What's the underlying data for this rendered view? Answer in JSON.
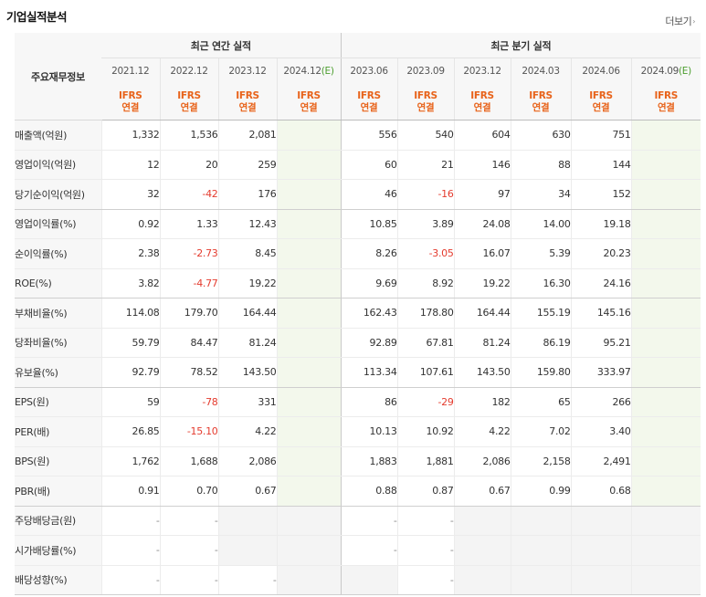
{
  "section_title": "기업실적분석",
  "more_label": "더보기",
  "more_arrow": "›",
  "header": {
    "label": "주요재무정보",
    "annual_title": "최근 연간 실적",
    "quarter_title": "최근 분기 실적",
    "annual_periods": [
      {
        "date": "2021.12",
        "est": ""
      },
      {
        "date": "2022.12",
        "est": ""
      },
      {
        "date": "2023.12",
        "est": ""
      },
      {
        "date": "2024.12",
        "est": "(E)"
      }
    ],
    "quarter_periods": [
      {
        "date": "2023.06",
        "est": ""
      },
      {
        "date": "2023.09",
        "est": ""
      },
      {
        "date": "2023.12",
        "est": ""
      },
      {
        "date": "2024.03",
        "est": ""
      },
      {
        "date": "2024.06",
        "est": ""
      },
      {
        "date": "2024.09",
        "est": "(E)"
      }
    ],
    "ifrs_line1": "IFRS",
    "ifrs_line2": "연결"
  },
  "rows": [
    {
      "label": "매출액(억원)",
      "values": [
        "1,332",
        "1,536",
        "2,081",
        "",
        "556",
        "540",
        "604",
        "630",
        "751",
        ""
      ]
    },
    {
      "label": "영업이익(억원)",
      "values": [
        "12",
        "20",
        "259",
        "",
        "60",
        "21",
        "146",
        "88",
        "144",
        ""
      ]
    },
    {
      "label": "당기순이익(억원)",
      "values": [
        "32",
        "-42",
        "176",
        "",
        "46",
        "-16",
        "97",
        "34",
        "152",
        ""
      ]
    },
    {
      "label": "영업이익률(%)",
      "values": [
        "0.92",
        "1.33",
        "12.43",
        "",
        "10.85",
        "3.89",
        "24.08",
        "14.00",
        "19.18",
        ""
      ]
    },
    {
      "label": "순이익률(%)",
      "values": [
        "2.38",
        "-2.73",
        "8.45",
        "",
        "8.26",
        "-3.05",
        "16.07",
        "5.39",
        "20.23",
        ""
      ]
    },
    {
      "label": "ROE(%)",
      "values": [
        "3.82",
        "-4.77",
        "19.22",
        "",
        "9.69",
        "8.92",
        "19.22",
        "16.30",
        "24.16",
        ""
      ]
    },
    {
      "label": "부채비율(%)",
      "values": [
        "114.08",
        "179.70",
        "164.44",
        "",
        "162.43",
        "178.80",
        "164.44",
        "155.19",
        "145.16",
        ""
      ]
    },
    {
      "label": "당좌비율(%)",
      "values": [
        "59.79",
        "84.47",
        "81.24",
        "",
        "92.89",
        "67.81",
        "81.24",
        "86.19",
        "95.21",
        ""
      ]
    },
    {
      "label": "유보율(%)",
      "values": [
        "92.79",
        "78.52",
        "143.50",
        "",
        "113.34",
        "107.61",
        "143.50",
        "159.80",
        "333.97",
        ""
      ]
    },
    {
      "label": "EPS(원)",
      "values": [
        "59",
        "-78",
        "331",
        "",
        "86",
        "-29",
        "182",
        "65",
        "266",
        ""
      ]
    },
    {
      "label": "PER(배)",
      "values": [
        "26.85",
        "-15.10",
        "4.22",
        "",
        "10.13",
        "10.92",
        "4.22",
        "7.02",
        "3.40",
        ""
      ]
    },
    {
      "label": "BPS(원)",
      "values": [
        "1,762",
        "1,688",
        "2,086",
        "",
        "1,883",
        "1,881",
        "2,086",
        "2,158",
        "2,491",
        ""
      ]
    },
    {
      "label": "PBR(배)",
      "values": [
        "0.91",
        "0.70",
        "0.67",
        "",
        "0.88",
        "0.87",
        "0.67",
        "0.99",
        "0.68",
        ""
      ]
    },
    {
      "label": "주당배당금(원)",
      "values": [
        "-",
        "-",
        "",
        "",
        "-",
        "-",
        "",
        "",
        "",
        ""
      ]
    },
    {
      "label": "시가배당률(%)",
      "values": [
        "-",
        "-",
        "",
        "",
        "-",
        "-",
        "",
        "",
        "",
        ""
      ]
    },
    {
      "label": "배당성향(%)",
      "values": [
        "-",
        "-",
        "-",
        "",
        "",
        "-",
        "",
        "",
        "",
        ""
      ]
    }
  ],
  "colors": {
    "ifrs": "#e8631a",
    "negative": "#e43b2e",
    "estimate": "#4c9e2f"
  }
}
